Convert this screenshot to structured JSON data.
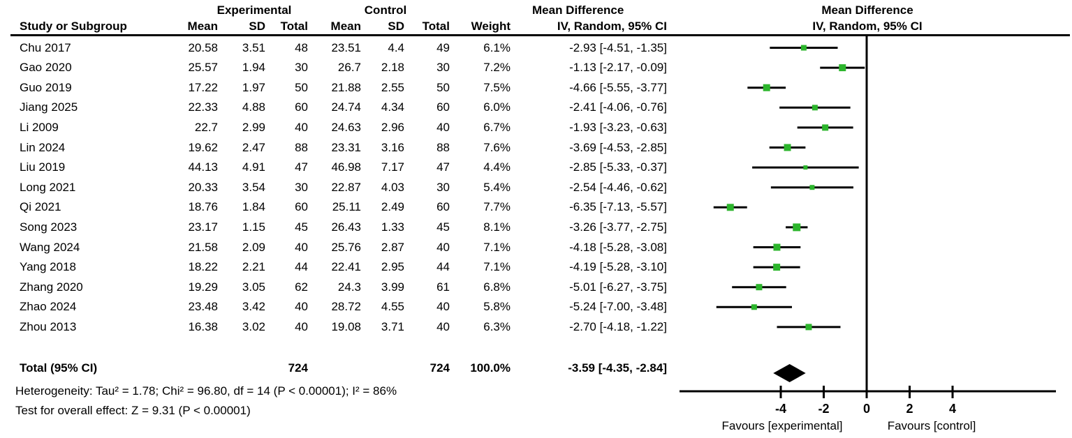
{
  "figure": {
    "header": {
      "group_experimental": "Experimental",
      "group_control": "Control",
      "col_study": "Study or Subgroup",
      "col_mean": "Mean",
      "col_sd": "SD",
      "col_total": "Total",
      "col_weight": "Weight",
      "md_title": "Mean Difference",
      "md_subtitle": "IV, Random, 95% CI"
    },
    "total_row": {
      "label": "Total (95% CI)",
      "exp_total": "724",
      "ctl_total": "724",
      "weight": "100.0%",
      "ci_text": "-3.59 [-4.35, -2.84]"
    },
    "footer": {
      "heterogeneity": "Heterogeneity: Tau² = 1.78; Chi² = 96.80, df = 14 (P < 0.00001); I² = 86%",
      "overall_effect": "Test for overall effect: Z = 9.31 (P < 0.00001)"
    }
  },
  "chart_data": {
    "type": "forest",
    "effect_measure": "Mean Difference, IV, Random, 95% CI",
    "studies": [
      {
        "study": "Chu 2017",
        "exp_mean": "20.58",
        "exp_sd": "3.51",
        "exp_total": "48",
        "ctl_mean": "23.51",
        "ctl_sd": "4.4",
        "ctl_total": "49",
        "weight": "6.1%",
        "md": -2.93,
        "ci_low": -4.51,
        "ci_high": -1.35,
        "ci_text": "-2.93 [-4.51, -1.35]"
      },
      {
        "study": "Gao 2020",
        "exp_mean": "25.57",
        "exp_sd": "1.94",
        "exp_total": "30",
        "ctl_mean": "26.7",
        "ctl_sd": "2.18",
        "ctl_total": "30",
        "weight": "7.2%",
        "md": -1.13,
        "ci_low": -2.17,
        "ci_high": -0.09,
        "ci_text": "-1.13 [-2.17, -0.09]"
      },
      {
        "study": "Guo 2019",
        "exp_mean": "17.22",
        "exp_sd": "1.97",
        "exp_total": "50",
        "ctl_mean": "21.88",
        "ctl_sd": "2.55",
        "ctl_total": "50",
        "weight": "7.5%",
        "md": -4.66,
        "ci_low": -5.55,
        "ci_high": -3.77,
        "ci_text": "-4.66 [-5.55, -3.77]"
      },
      {
        "study": "Jiang 2025",
        "exp_mean": "22.33",
        "exp_sd": "4.88",
        "exp_total": "60",
        "ctl_mean": "24.74",
        "ctl_sd": "4.34",
        "ctl_total": "60",
        "weight": "6.0%",
        "md": -2.41,
        "ci_low": -4.06,
        "ci_high": -0.76,
        "ci_text": "-2.41 [-4.06, -0.76]"
      },
      {
        "study": "Li 2009",
        "exp_mean": "22.7",
        "exp_sd": "2.99",
        "exp_total": "40",
        "ctl_mean": "24.63",
        "ctl_sd": "2.96",
        "ctl_total": "40",
        "weight": "6.7%",
        "md": -1.93,
        "ci_low": -3.23,
        "ci_high": -0.63,
        "ci_text": "-1.93 [-3.23, -0.63]"
      },
      {
        "study": "Lin 2024",
        "exp_mean": "19.62",
        "exp_sd": "2.47",
        "exp_total": "88",
        "ctl_mean": "23.31",
        "ctl_sd": "3.16",
        "ctl_total": "88",
        "weight": "7.6%",
        "md": -3.69,
        "ci_low": -4.53,
        "ci_high": -2.85,
        "ci_text": "-3.69 [-4.53, -2.85]"
      },
      {
        "study": "Liu 2019",
        "exp_mean": "44.13",
        "exp_sd": "4.91",
        "exp_total": "47",
        "ctl_mean": "46.98",
        "ctl_sd": "7.17",
        "ctl_total": "47",
        "weight": "4.4%",
        "md": -2.85,
        "ci_low": -5.33,
        "ci_high": -0.37,
        "ci_text": "-2.85 [-5.33, -0.37]"
      },
      {
        "study": "Long 2021",
        "exp_mean": "20.33",
        "exp_sd": "3.54",
        "exp_total": "30",
        "ctl_mean": "22.87",
        "ctl_sd": "4.03",
        "ctl_total": "30",
        "weight": "5.4%",
        "md": -2.54,
        "ci_low": -4.46,
        "ci_high": -0.62,
        "ci_text": "-2.54 [-4.46, -0.62]"
      },
      {
        "study": "Qi 2021",
        "exp_mean": "18.76",
        "exp_sd": "1.84",
        "exp_total": "60",
        "ctl_mean": "25.11",
        "ctl_sd": "2.49",
        "ctl_total": "60",
        "weight": "7.7%",
        "md": -6.35,
        "ci_low": -7.13,
        "ci_high": -5.57,
        "ci_text": "-6.35 [-7.13, -5.57]"
      },
      {
        "study": "Song 2023",
        "exp_mean": "23.17",
        "exp_sd": "1.15",
        "exp_total": "45",
        "ctl_mean": "26.43",
        "ctl_sd": "1.33",
        "ctl_total": "45",
        "weight": "8.1%",
        "md": -3.26,
        "ci_low": -3.77,
        "ci_high": -2.75,
        "ci_text": "-3.26 [-3.77, -2.75]"
      },
      {
        "study": "Wang 2024",
        "exp_mean": "21.58",
        "exp_sd": "2.09",
        "exp_total": "40",
        "ctl_mean": "25.76",
        "ctl_sd": "2.87",
        "ctl_total": "40",
        "weight": "7.1%",
        "md": -4.18,
        "ci_low": -5.28,
        "ci_high": -3.08,
        "ci_text": "-4.18 [-5.28, -3.08]"
      },
      {
        "study": "Yang 2018",
        "exp_mean": "18.22",
        "exp_sd": "2.21",
        "exp_total": "44",
        "ctl_mean": "22.41",
        "ctl_sd": "2.95",
        "ctl_total": "44",
        "weight": "7.1%",
        "md": -4.19,
        "ci_low": -5.28,
        "ci_high": -3.1,
        "ci_text": "-4.19 [-5.28, -3.10]"
      },
      {
        "study": "Zhang 2020",
        "exp_mean": "19.29",
        "exp_sd": "3.05",
        "exp_total": "62",
        "ctl_mean": "24.3",
        "ctl_sd": "3.99",
        "ctl_total": "61",
        "weight": "6.8%",
        "md": -5.01,
        "ci_low": -6.27,
        "ci_high": -3.75,
        "ci_text": "-5.01 [-6.27, -3.75]"
      },
      {
        "study": "Zhao 2024",
        "exp_mean": "23.48",
        "exp_sd": "3.42",
        "exp_total": "40",
        "ctl_mean": "28.72",
        "ctl_sd": "4.55",
        "ctl_total": "40",
        "weight": "5.8%",
        "md": -5.24,
        "ci_low": -7.0,
        "ci_high": -3.48,
        "ci_text": "-5.24 [-7.00, -3.48]"
      },
      {
        "study": "Zhou 2013",
        "exp_mean": "16.38",
        "exp_sd": "3.02",
        "exp_total": "40",
        "ctl_mean": "19.08",
        "ctl_sd": "3.71",
        "ctl_total": "40",
        "weight": "6.3%",
        "md": -2.7,
        "ci_low": -4.18,
        "ci_high": -1.22,
        "ci_text": "-2.70 [-4.18, -1.22]"
      }
    ],
    "total": {
      "md": -3.59,
      "ci_low": -4.35,
      "ci_high": -2.84
    },
    "axis": {
      "ticks": [
        -4,
        -2,
        0,
        2,
        4
      ],
      "min": -8.7,
      "max": 8.8,
      "zero_line": true
    },
    "favours_left": "Favours [experimental]",
    "favours_right": "Favours [control]",
    "marker_color": "#2CB52C",
    "line_color": "#000000"
  }
}
